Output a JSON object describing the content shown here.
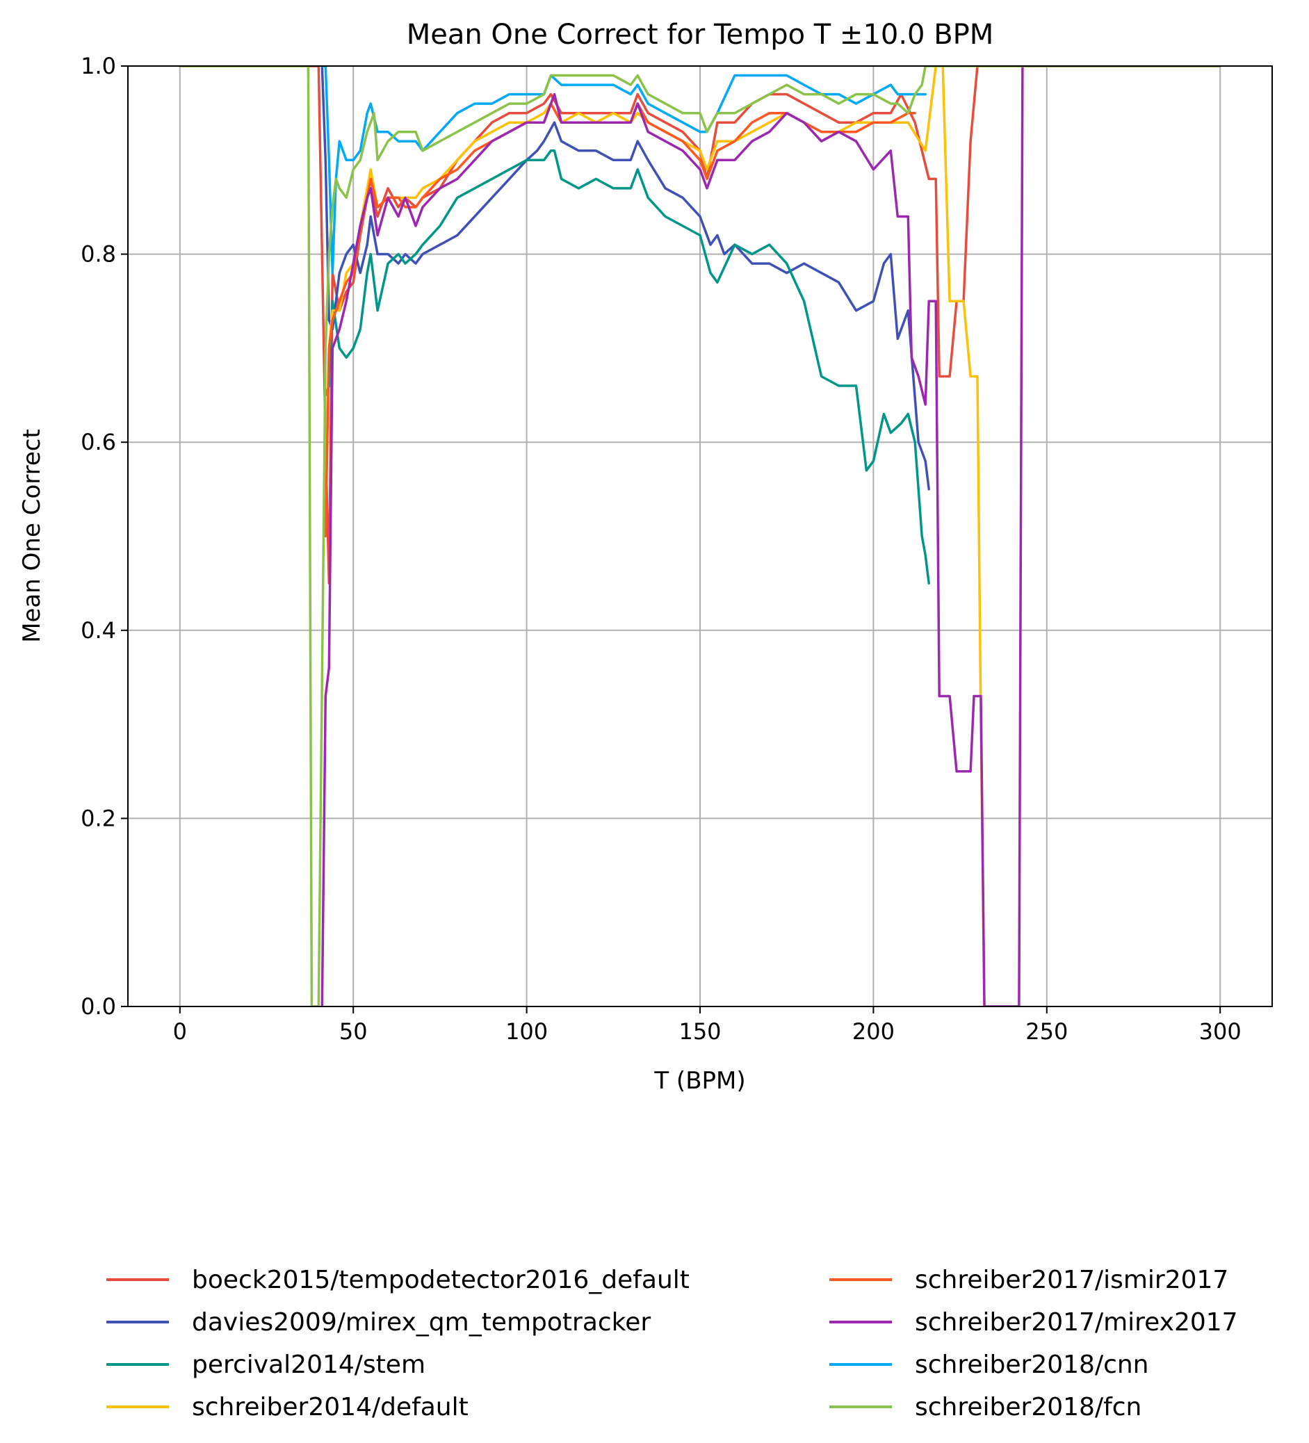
{
  "chart_data": {
    "type": "line",
    "title": "Mean One Correct for Tempo T ±10.0 BPM",
    "xlabel": "T (BPM)",
    "ylabel": "Mean One Correct",
    "xlim": [
      -15,
      315
    ],
    "ylim": [
      0,
      1
    ],
    "xticks": [
      0,
      50,
      100,
      150,
      200,
      250,
      300
    ],
    "yticks": [
      0.0,
      0.2,
      0.4,
      0.6,
      0.8,
      1.0
    ],
    "xtick_labels": [
      "0",
      "50",
      "100",
      "150",
      "200",
      "250",
      "300"
    ],
    "ytick_labels": [
      "0.0",
      "0.2",
      "0.4",
      "0.6",
      "0.8",
      "1.0"
    ],
    "grid": true,
    "legend_position": "below plot, two columns",
    "series": [
      {
        "name": "boeck2015/tempodetector2016_default",
        "color": "#e74c3c",
        "x": [
          0,
          37,
          38,
          40,
          42,
          43,
          44,
          46,
          48,
          50,
          52,
          54,
          55,
          57,
          60,
          63,
          65,
          68,
          70,
          75,
          80,
          85,
          90,
          95,
          100,
          105,
          107,
          110,
          115,
          120,
          125,
          130,
          132,
          135,
          140,
          145,
          150,
          152,
          155,
          160,
          165,
          170,
          175,
          180,
          185,
          190,
          195,
          200,
          205,
          208,
          212,
          216,
          218,
          219,
          222,
          224,
          226,
          228,
          230,
          232,
          236,
          240,
          245,
          250,
          260,
          270,
          280,
          290,
          300
        ],
        "y": [
          1.0,
          1.0,
          1.0,
          1.0,
          0.6,
          0.45,
          0.78,
          0.74,
          0.76,
          0.77,
          0.82,
          0.86,
          0.87,
          0.84,
          0.87,
          0.85,
          0.86,
          0.85,
          0.86,
          0.87,
          0.9,
          0.92,
          0.94,
          0.95,
          0.95,
          0.96,
          0.97,
          0.95,
          0.95,
          0.95,
          0.95,
          0.95,
          0.97,
          0.95,
          0.94,
          0.93,
          0.91,
          0.88,
          0.94,
          0.94,
          0.96,
          0.97,
          0.97,
          0.96,
          0.95,
          0.94,
          0.94,
          0.95,
          0.95,
          0.97,
          0.94,
          0.88,
          0.88,
          0.67,
          0.67,
          0.75,
          0.75,
          0.92,
          1.0,
          1.0,
          1.0,
          1.0,
          1.0,
          1.0,
          1.0,
          1.0,
          1.0,
          1.0,
          1.0
        ]
      },
      {
        "name": "davies2009/mirex_qm_tempotracker",
        "color": "#3f51b5",
        "x": [
          41,
          42,
          43,
          44,
          46,
          48,
          50,
          52,
          54,
          55,
          57,
          60,
          63,
          65,
          68,
          70,
          75,
          80,
          85,
          90,
          95,
          100,
          103,
          105,
          108,
          110,
          115,
          120,
          125,
          130,
          132,
          135,
          140,
          145,
          150,
          153,
          155,
          157,
          160,
          165,
          170,
          175,
          180,
          185,
          190,
          195,
          200,
          203,
          205,
          207,
          210,
          213,
          215,
          216
        ],
        "y": [
          1.0,
          0.9,
          0.73,
          0.72,
          0.78,
          0.8,
          0.81,
          0.78,
          0.81,
          0.84,
          0.8,
          0.8,
          0.79,
          0.8,
          0.79,
          0.8,
          0.81,
          0.82,
          0.84,
          0.86,
          0.88,
          0.9,
          0.91,
          0.92,
          0.94,
          0.92,
          0.91,
          0.91,
          0.9,
          0.9,
          0.92,
          0.9,
          0.87,
          0.86,
          0.84,
          0.81,
          0.82,
          0.8,
          0.81,
          0.79,
          0.79,
          0.78,
          0.79,
          0.78,
          0.77,
          0.74,
          0.75,
          0.79,
          0.8,
          0.71,
          0.74,
          0.6,
          0.58,
          0.55
        ]
      },
      {
        "name": "percival2014/stem",
        "color": "#009688",
        "x": [
          42,
          43,
          44,
          46,
          48,
          50,
          52,
          54,
          55,
          57,
          60,
          63,
          65,
          68,
          70,
          75,
          80,
          85,
          90,
          95,
          100,
          105,
          107,
          108,
          110,
          115,
          120,
          125,
          130,
          132,
          135,
          140,
          145,
          150,
          153,
          155,
          160,
          165,
          170,
          175,
          180,
          185,
          190,
          195,
          198,
          200,
          203,
          205,
          208,
          210,
          212,
          214,
          215,
          216
        ],
        "y": [
          0.65,
          0.66,
          0.75,
          0.7,
          0.69,
          0.7,
          0.72,
          0.78,
          0.8,
          0.74,
          0.79,
          0.8,
          0.79,
          0.8,
          0.81,
          0.83,
          0.86,
          0.87,
          0.88,
          0.89,
          0.9,
          0.9,
          0.91,
          0.91,
          0.88,
          0.87,
          0.88,
          0.87,
          0.87,
          0.89,
          0.86,
          0.84,
          0.83,
          0.82,
          0.78,
          0.77,
          0.81,
          0.8,
          0.81,
          0.79,
          0.75,
          0.67,
          0.66,
          0.66,
          0.57,
          0.58,
          0.63,
          0.61,
          0.62,
          0.63,
          0.6,
          0.5,
          0.48,
          0.45
        ]
      },
      {
        "name": "schreiber2014/default",
        "color": "#ffc107",
        "x": [
          42,
          43,
          44,
          46,
          48,
          50,
          52,
          54,
          55,
          57,
          60,
          63,
          65,
          68,
          70,
          75,
          80,
          85,
          90,
          95,
          100,
          105,
          107,
          110,
          115,
          120,
          125,
          130,
          132,
          135,
          140,
          145,
          150,
          152,
          155,
          160,
          165,
          170,
          175,
          180,
          185,
          190,
          195,
          200,
          205,
          210,
          215,
          218,
          220,
          222,
          224,
          226,
          228,
          230,
          231,
          232
        ],
        "y": [
          0.55,
          0.7,
          0.74,
          0.74,
          0.78,
          0.79,
          0.83,
          0.87,
          0.89,
          0.85,
          0.86,
          0.86,
          0.86,
          0.86,
          0.87,
          0.88,
          0.9,
          0.92,
          0.93,
          0.94,
          0.94,
          0.95,
          0.96,
          0.94,
          0.95,
          0.94,
          0.95,
          0.94,
          0.95,
          0.94,
          0.93,
          0.92,
          0.91,
          0.89,
          0.92,
          0.92,
          0.93,
          0.94,
          0.95,
          0.94,
          0.92,
          0.93,
          0.94,
          0.94,
          0.94,
          0.94,
          0.91,
          1.0,
          1.0,
          0.75,
          0.75,
          0.75,
          0.67,
          0.67,
          0.3,
          0.0
        ]
      },
      {
        "name": "schreiber2017/ismir2017",
        "color": "#ff5722",
        "x": [
          42,
          43,
          44,
          46,
          48,
          50,
          52,
          54,
          55,
          57,
          60,
          63,
          65,
          68,
          70,
          75,
          80,
          85,
          90,
          95,
          100,
          105,
          107,
          110,
          115,
          120,
          125,
          130,
          132,
          135,
          140,
          145,
          150,
          152,
          155,
          160,
          165,
          170,
          175,
          180,
          185,
          190,
          195,
          200,
          205,
          210,
          212
        ],
        "y": [
          0.5,
          0.7,
          0.73,
          0.75,
          0.77,
          0.78,
          0.82,
          0.86,
          0.88,
          0.85,
          0.86,
          0.86,
          0.85,
          0.85,
          0.86,
          0.88,
          0.89,
          0.91,
          0.92,
          0.93,
          0.94,
          0.94,
          0.96,
          0.94,
          0.94,
          0.94,
          0.94,
          0.94,
          0.96,
          0.94,
          0.93,
          0.92,
          0.9,
          0.88,
          0.91,
          0.92,
          0.94,
          0.95,
          0.95,
          0.94,
          0.93,
          0.93,
          0.93,
          0.94,
          0.94,
          0.95,
          0.95
        ]
      },
      {
        "name": "schreiber2017/mirex2017",
        "color": "#9c27b0",
        "x": [
          41,
          42,
          43,
          44,
          46,
          48,
          50,
          52,
          54,
          55,
          57,
          60,
          63,
          65,
          68,
          70,
          75,
          80,
          85,
          90,
          95,
          100,
          105,
          107,
          108,
          110,
          115,
          120,
          125,
          130,
          132,
          135,
          140,
          145,
          150,
          152,
          155,
          160,
          165,
          170,
          175,
          180,
          185,
          190,
          195,
          200,
          205,
          207,
          210,
          211,
          213,
          215,
          216,
          218,
          219,
          220,
          222,
          224,
          226,
          228,
          229,
          231,
          232,
          236,
          240,
          242,
          243,
          245,
          250,
          260,
          270,
          280,
          290,
          300
        ],
        "y": [
          0.0,
          0.33,
          0.36,
          0.7,
          0.72,
          0.75,
          0.79,
          0.83,
          0.86,
          0.87,
          0.82,
          0.86,
          0.84,
          0.86,
          0.83,
          0.85,
          0.87,
          0.88,
          0.9,
          0.92,
          0.93,
          0.94,
          0.94,
          0.96,
          0.97,
          0.94,
          0.94,
          0.94,
          0.94,
          0.94,
          0.96,
          0.93,
          0.92,
          0.91,
          0.89,
          0.87,
          0.9,
          0.9,
          0.92,
          0.93,
          0.95,
          0.94,
          0.92,
          0.93,
          0.92,
          0.89,
          0.91,
          0.84,
          0.84,
          0.69,
          0.67,
          0.64,
          0.75,
          0.75,
          0.33,
          0.33,
          0.33,
          0.25,
          0.25,
          0.25,
          0.33,
          0.33,
          0.0,
          0.0,
          0.0,
          0.0,
          1.0,
          1.0,
          1.0,
          1.0,
          1.0,
          1.0,
          1.0,
          1.0
        ]
      },
      {
        "name": "schreiber2018/cnn",
        "color": "#03a9f4",
        "x": [
          41,
          42,
          43,
          44,
          45,
          46,
          48,
          50,
          52,
          54,
          55,
          57,
          60,
          63,
          65,
          68,
          70,
          75,
          80,
          85,
          90,
          95,
          100,
          105,
          107,
          110,
          115,
          120,
          125,
          130,
          132,
          135,
          140,
          145,
          150,
          152,
          155,
          160,
          165,
          170,
          175,
          180,
          185,
          190,
          195,
          200,
          205,
          207,
          210,
          212,
          214,
          215
        ],
        "y": [
          1.0,
          1.0,
          0.9,
          0.78,
          0.88,
          0.92,
          0.9,
          0.9,
          0.91,
          0.95,
          0.96,
          0.93,
          0.93,
          0.92,
          0.92,
          0.92,
          0.91,
          0.93,
          0.95,
          0.96,
          0.96,
          0.97,
          0.97,
          0.97,
          0.99,
          0.98,
          0.98,
          0.98,
          0.98,
          0.97,
          0.98,
          0.96,
          0.95,
          0.94,
          0.93,
          0.93,
          0.95,
          0.99,
          0.99,
          0.99,
          0.99,
          0.98,
          0.97,
          0.97,
          0.96,
          0.97,
          0.98,
          0.97,
          0.97,
          0.97,
          0.97,
          0.97
        ]
      },
      {
        "name": "schreiber2018/fcn",
        "color": "#8bc34a",
        "x": [
          0,
          36,
          37,
          38,
          39,
          40,
          42,
          43,
          44,
          45,
          46,
          48,
          50,
          52,
          54,
          55,
          56,
          57,
          60,
          63,
          65,
          68,
          70,
          75,
          80,
          85,
          90,
          95,
          100,
          105,
          107,
          110,
          115,
          120,
          125,
          130,
          132,
          135,
          140,
          145,
          150,
          152,
          155,
          160,
          165,
          170,
          175,
          180,
          185,
          190,
          195,
          200,
          205,
          207,
          210,
          212,
          214,
          215,
          216,
          218,
          220,
          222,
          224,
          226,
          230,
          240,
          250,
          260,
          270,
          280,
          290,
          300
        ],
        "y": [
          1.0,
          1.0,
          1.0,
          0.0,
          0.0,
          0.0,
          0.7,
          0.8,
          0.85,
          0.88,
          0.87,
          0.86,
          0.89,
          0.9,
          0.93,
          0.94,
          0.95,
          0.9,
          0.92,
          0.93,
          0.93,
          0.93,
          0.91,
          0.92,
          0.93,
          0.94,
          0.95,
          0.96,
          0.96,
          0.97,
          0.99,
          0.99,
          0.99,
          0.99,
          0.99,
          0.98,
          0.99,
          0.97,
          0.96,
          0.95,
          0.95,
          0.93,
          0.95,
          0.95,
          0.96,
          0.97,
          0.98,
          0.97,
          0.97,
          0.96,
          0.97,
          0.97,
          0.96,
          0.96,
          0.95,
          0.97,
          0.98,
          1.0,
          1.0,
          1.0,
          1.0,
          1.0,
          1.0,
          1.0,
          1.0,
          1.0,
          1.0,
          1.0,
          1.0,
          1.0,
          1.0,
          1.0
        ]
      }
    ]
  }
}
